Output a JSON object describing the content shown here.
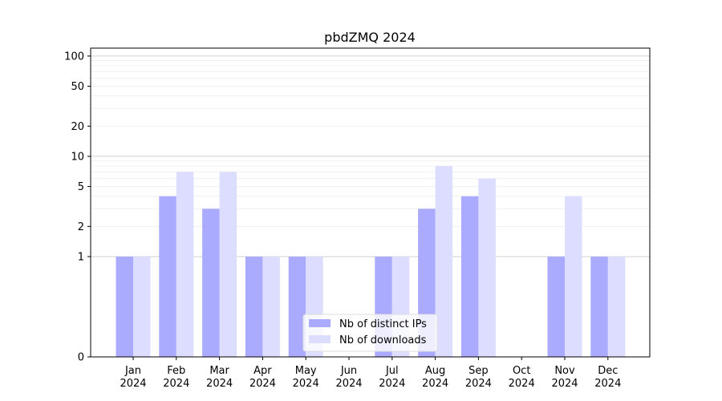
{
  "chart_data": {
    "type": "bar",
    "title": "pbdZMQ 2024",
    "xlabel": "",
    "ylabel": "",
    "y_scale": "symlog",
    "ylim": [
      0,
      120
    ],
    "y_ticks": [
      0,
      1,
      2,
      5,
      10,
      20,
      50,
      100
    ],
    "grid": true,
    "legend_position": "bottom-center",
    "categories": [
      [
        "Jan",
        "2024"
      ],
      [
        "Feb",
        "2024"
      ],
      [
        "Mar",
        "2024"
      ],
      [
        "Apr",
        "2024"
      ],
      [
        "May",
        "2024"
      ],
      [
        "Jun",
        "2024"
      ],
      [
        "Jul",
        "2024"
      ],
      [
        "Aug",
        "2024"
      ],
      [
        "Sep",
        "2024"
      ],
      [
        "Oct",
        "2024"
      ],
      [
        "Nov",
        "2024"
      ],
      [
        "Dec",
        "2024"
      ]
    ],
    "series": [
      {
        "name": "Nb of distinct IPs",
        "color": "#aaaaff",
        "values": [
          1,
          4,
          3,
          1,
          1,
          0,
          1,
          3,
          4,
          0,
          1,
          1
        ]
      },
      {
        "name": "Nb of downloads",
        "color": "#ddddff",
        "values": [
          1,
          7,
          7,
          1,
          1,
          0,
          1,
          8,
          6,
          0,
          4,
          1
        ]
      }
    ]
  }
}
